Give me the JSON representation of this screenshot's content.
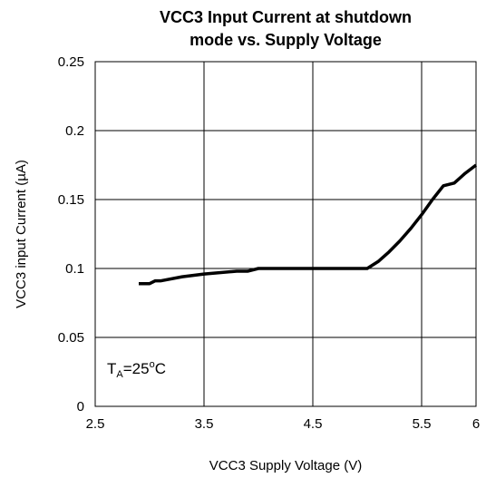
{
  "chart_data": {
    "type": "line",
    "title_lines": [
      "VCC3 Input Current at shutdown",
      "mode vs. Supply Voltage"
    ],
    "x_label": "VCC3 Supply Voltage (V)",
    "y_label": "VCC3 input Current (µA)",
    "annotation_parts": [
      "T",
      "A",
      "=25",
      "o",
      "C"
    ],
    "x": [
      2.9,
      3.0,
      3.05,
      3.1,
      3.3,
      3.5,
      3.8,
      3.9,
      4.0,
      4.5,
      5.0,
      5.1,
      5.2,
      5.3,
      5.4,
      5.5,
      5.6,
      5.7,
      5.8,
      5.9,
      6.0
    ],
    "series": [
      {
        "color": "#000000",
        "values": [
          0.089,
          0.089,
          0.091,
          0.091,
          0.094,
          0.096,
          0.098,
          0.098,
          0.1,
          0.1,
          0.1,
          0.105,
          0.112,
          0.12,
          0.129,
          0.139,
          0.15,
          0.16,
          0.162,
          0.169,
          0.175
        ]
      }
    ],
    "xlim": [
      2.5,
      6
    ],
    "xticks": [
      2.5,
      3.5,
      4.5,
      5.5,
      6
    ],
    "ylim": [
      0,
      0.25
    ],
    "yticks": [
      0,
      0.05,
      0.1,
      0.15,
      0.2,
      0.25
    ],
    "grid": true
  }
}
